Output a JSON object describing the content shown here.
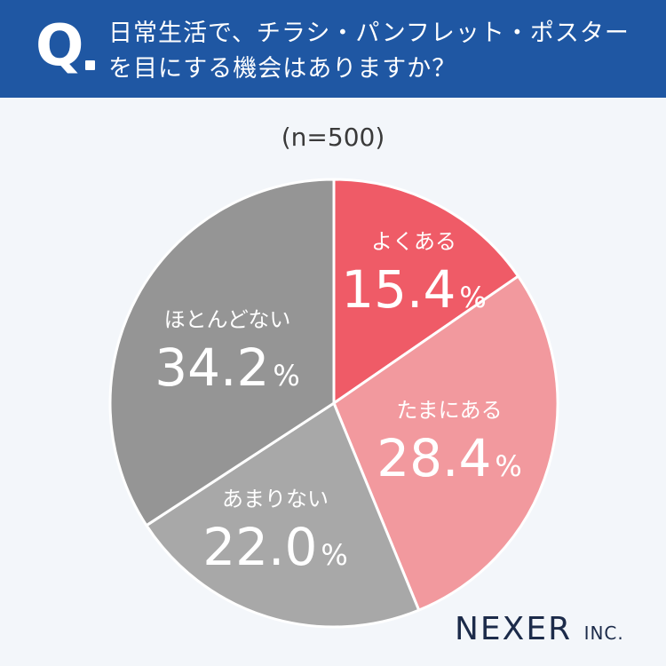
{
  "header": {
    "q_mark": "Q",
    "question": "日常生活で、チラシ・パンフレット・ポスターを目にする機会はありますか？"
  },
  "sample_size": "(n=500)",
  "logo": {
    "main": "NEXER",
    "suffix": "INC."
  },
  "colors": {
    "header_bg": "#1f57a3",
    "background": "#f3f6fa",
    "often": "#ef5b67",
    "sometimes": "#f2999e",
    "rarely": "#a8a8a8",
    "never": "#959595"
  },
  "chart_data": {
    "type": "pie",
    "title": "",
    "start": "12 o'clock, clockwise",
    "slices": [
      {
        "label": "よくある",
        "value": 15.4,
        "display": "15.4",
        "unit": "%",
        "color": "#ef5b67"
      },
      {
        "label": "たまにある",
        "value": 28.4,
        "display": "28.4",
        "unit": "%",
        "color": "#f2999e"
      },
      {
        "label": "あまりない",
        "value": 22.0,
        "display": "22.0",
        "unit": "%",
        "color": "#a8a8a8"
      },
      {
        "label": "ほとんどない",
        "value": 34.2,
        "display": "34.2",
        "unit": "%",
        "color": "#959595"
      }
    ]
  }
}
